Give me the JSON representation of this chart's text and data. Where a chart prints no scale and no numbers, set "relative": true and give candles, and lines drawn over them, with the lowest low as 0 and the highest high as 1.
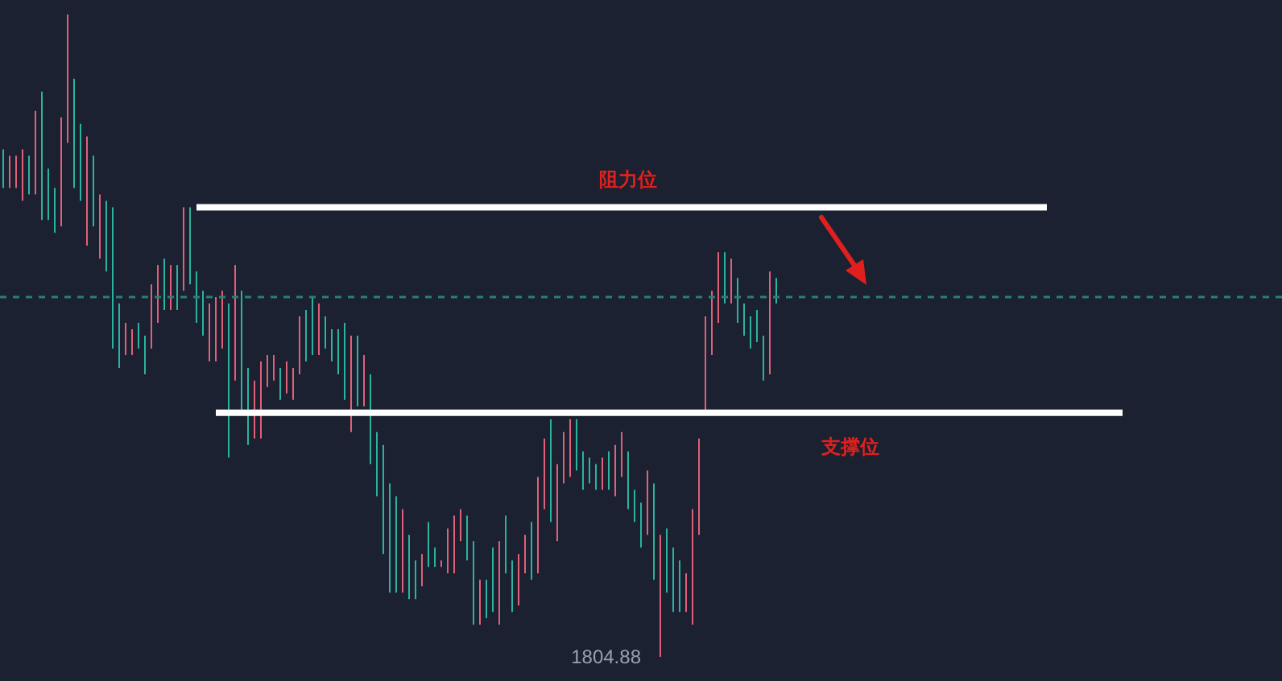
{
  "chart_data": {
    "type": "candlestick",
    "relative": true,
    "categories": [
      null,
      null,
      null,
      null,
      null,
      null,
      null,
      null,
      null,
      null,
      null,
      null,
      null,
      null,
      null,
      null,
      null,
      null,
      null,
      null,
      null,
      null,
      null,
      null,
      null,
      null,
      null,
      null,
      null,
      null,
      null,
      null,
      null,
      null,
      null,
      null,
      null,
      null,
      null,
      null,
      null,
      null,
      null,
      null,
      null,
      null,
      null,
      null,
      null,
      null,
      null,
      null,
      null,
      null,
      null,
      null,
      null,
      null,
      null,
      null,
      null,
      null,
      null,
      null,
      null,
      null,
      null,
      null,
      null,
      null,
      null,
      null,
      null,
      null,
      null,
      null,
      null,
      null,
      null,
      null,
      null,
      null,
      null,
      null,
      null,
      null,
      null,
      null,
      null,
      null,
      null,
      null,
      null,
      null,
      null,
      null,
      null,
      null,
      null,
      null,
      null,
      null,
      null,
      null,
      null,
      null,
      null,
      null,
      null,
      null,
      null,
      null,
      null,
      null,
      null,
      null,
      null,
      null,
      null,
      null,
      null
    ],
    "ohlc": [
      [
        0.79,
        0.79,
        0.73,
        0.73
      ],
      [
        0.73,
        0.78,
        0.73,
        0.78
      ],
      [
        0.73,
        0.78,
        0.73,
        0.78
      ],
      [
        0.71,
        0.79,
        0.71,
        0.79
      ],
      [
        0.78,
        0.78,
        0.72,
        0.72
      ],
      [
        0.72,
        0.85,
        0.72,
        0.85
      ],
      [
        0.88,
        0.88,
        0.68,
        0.68
      ],
      [
        0.76,
        0.76,
        0.68,
        0.68
      ],
      [
        0.73,
        0.73,
        0.66,
        0.66
      ],
      [
        0.67,
        0.84,
        0.67,
        0.84
      ],
      [
        0.8,
        1,
        0.8,
        1
      ],
      [
        0.9,
        0.9,
        0.73,
        0.73
      ],
      [
        0.83,
        0.83,
        0.71,
        0.71
      ],
      [
        0.64,
        0.81,
        0.64,
        0.81
      ],
      [
        0.78,
        0.78,
        0.67,
        0.67
      ],
      [
        0.62,
        0.72,
        0.62,
        0.72
      ],
      [
        0.71,
        0.71,
        0.6,
        0.6
      ],
      [
        0.7,
        0.7,
        0.48,
        0.48
      ],
      [
        0.55,
        0.55,
        0.45,
        0.45
      ],
      [
        0.47,
        0.52,
        0.47,
        0.52
      ],
      [
        0.47,
        0.51,
        0.47,
        0.51
      ],
      [
        0.52,
        0.52,
        0.48,
        0.48
      ],
      [
        0.5,
        0.5,
        0.44,
        0.44
      ],
      [
        0.48,
        0.58,
        0.48,
        0.58
      ],
      [
        0.52,
        0.61,
        0.52,
        0.61
      ],
      [
        0.62,
        0.62,
        0.54,
        0.54
      ],
      [
        0.54,
        0.61,
        0.54,
        0.61
      ],
      [
        0.61,
        0.61,
        0.54,
        0.54
      ],
      [
        0.57,
        0.7,
        0.57,
        0.7
      ],
      [
        0.7,
        0.7,
        0.58,
        0.58
      ],
      [
        0.6,
        0.6,
        0.52,
        0.52
      ],
      [
        0.57,
        0.57,
        0.5,
        0.5
      ],
      [
        0.46,
        0.55,
        0.46,
        0.55
      ],
      [
        0.46,
        0.56,
        0.46,
        0.56
      ],
      [
        0.48,
        0.57,
        0.48,
        0.57
      ],
      [
        0.55,
        0.55,
        0.31,
        0.31
      ],
      [
        0.43,
        0.61,
        0.43,
        0.61
      ],
      [
        0.57,
        0.57,
        0.38,
        0.38
      ],
      [
        0.45,
        0.45,
        0.33,
        0.33
      ],
      [
        0.34,
        0.43,
        0.34,
        0.43
      ],
      [
        0.34,
        0.46,
        0.34,
        0.46
      ],
      [
        0.42,
        0.47,
        0.42,
        0.47
      ],
      [
        0.43,
        0.47,
        0.43,
        0.47
      ],
      [
        0.45,
        0.45,
        0.4,
        0.4
      ],
      [
        0.41,
        0.46,
        0.41,
        0.46
      ],
      [
        0.4,
        0.45,
        0.4,
        0.45
      ],
      [
        0.44,
        0.53,
        0.44,
        0.53
      ],
      [
        0.54,
        0.54,
        0.46,
        0.46
      ],
      [
        0.56,
        0.56,
        0.47,
        0.47
      ],
      [
        0.47,
        0.55,
        0.47,
        0.55
      ],
      [
        0.53,
        0.53,
        0.48,
        0.48
      ],
      [
        0.51,
        0.51,
        0.46,
        0.46
      ],
      [
        0.51,
        0.51,
        0.44,
        0.44
      ],
      [
        0.52,
        0.52,
        0.4,
        0.4
      ],
      [
        0.35,
        0.5,
        0.35,
        0.5
      ],
      [
        0.5,
        0.5,
        0.39,
        0.39
      ],
      [
        0.39,
        0.47,
        0.39,
        0.47
      ],
      [
        0.44,
        0.44,
        0.3,
        0.3
      ],
      [
        0.35,
        0.35,
        0.25,
        0.25
      ],
      [
        0.33,
        0.33,
        0.16,
        0.16
      ],
      [
        0.27,
        0.27,
        0.1,
        0.1
      ],
      [
        0.25,
        0.25,
        0.1,
        0.1
      ],
      [
        0.1,
        0.23,
        0.1,
        0.23
      ],
      [
        0.19,
        0.19,
        0.09,
        0.09
      ],
      [
        0.15,
        0.15,
        0.09,
        0.09
      ],
      [
        0.11,
        0.16,
        0.11,
        0.16
      ],
      [
        0.21,
        0.21,
        0.14,
        0.14
      ],
      [
        0.17,
        0.17,
        0.14,
        0.14
      ],
      [
        0.14,
        0.15,
        0.14,
        0.15
      ],
      [
        0.13,
        0.2,
        0.13,
        0.2
      ],
      [
        0.13,
        0.22,
        0.13,
        0.22
      ],
      [
        0.18,
        0.23,
        0.18,
        0.23
      ],
      [
        0.22,
        0.22,
        0.15,
        0.15
      ],
      [
        0.18,
        0.18,
        0.05,
        0.05
      ],
      [
        0.05,
        0.12,
        0.05,
        0.12
      ],
      [
        0.12,
        0.12,
        0.06,
        0.06
      ],
      [
        0.17,
        0.17,
        0.07,
        0.07
      ],
      [
        0.05,
        0.18,
        0.05,
        0.18
      ],
      [
        0.22,
        0.22,
        0.13,
        0.13
      ],
      [
        0.15,
        0.15,
        0.07,
        0.07
      ],
      [
        0.08,
        0.16,
        0.08,
        0.16
      ],
      [
        0.13,
        0.19,
        0.13,
        0.19
      ],
      [
        0.21,
        0.21,
        0.12,
        0.12
      ],
      [
        0.13,
        0.28,
        0.13,
        0.28
      ],
      [
        0.23,
        0.34,
        0.23,
        0.34
      ],
      [
        0.37,
        0.37,
        0.21,
        0.21
      ],
      [
        0.18,
        0.3,
        0.18,
        0.3
      ],
      [
        0.27,
        0.35,
        0.27,
        0.35
      ],
      [
        0.28,
        0.37,
        0.28,
        0.37
      ],
      [
        0.37,
        0.37,
        0.29,
        0.29
      ],
      [
        0.32,
        0.32,
        0.26,
        0.26
      ],
      [
        0.31,
        0.31,
        0.27,
        0.27
      ],
      [
        0.3,
        0.3,
        0.26,
        0.26
      ],
      [
        0.26,
        0.31,
        0.26,
        0.31
      ],
      [
        0.32,
        0.32,
        0.26,
        0.26
      ],
      [
        0.25,
        0.33,
        0.25,
        0.33
      ],
      [
        0.28,
        0.35,
        0.28,
        0.35
      ],
      [
        0.32,
        0.32,
        0.23,
        0.23
      ],
      [
        0.26,
        0.26,
        0.21,
        0.21
      ],
      [
        0.24,
        0.24,
        0.17,
        0.17
      ],
      [
        0.19,
        0.29,
        0.19,
        0.29
      ],
      [
        0.27,
        0.27,
        0.12,
        0.12
      ],
      [
        0,
        0.19,
        0,
        0.19
      ],
      [
        0.2,
        0.2,
        0.1,
        0.1
      ],
      [
        0.17,
        0.17,
        0.07,
        0.07
      ],
      [
        0.15,
        0.15,
        0.07,
        0.07
      ],
      [
        0.07,
        0.13,
        0.07,
        0.13
      ],
      [
        0.05,
        0.23,
        0.05,
        0.23
      ],
      [
        0.19,
        0.34,
        0.19,
        0.34
      ],
      [
        0.38,
        0.53,
        0.38,
        0.53
      ],
      [
        0.47,
        0.57,
        0.47,
        0.57
      ],
      [
        0.52,
        0.63,
        0.52,
        0.63
      ],
      [
        0.63,
        0.63,
        0.55,
        0.55
      ],
      [
        0.55,
        0.62,
        0.55,
        0.62
      ],
      [
        0.59,
        0.59,
        0.52,
        0.52
      ],
      [
        0.55,
        0.55,
        0.5,
        0.5
      ],
      [
        0.53,
        0.53,
        0.48,
        0.48
      ],
      [
        0.54,
        0.54,
        0.49,
        0.49
      ],
      [
        0.5,
        0.5,
        0.43,
        0.43
      ],
      [
        0.44,
        0.6,
        0.44,
        0.6
      ],
      [
        0.59,
        0.59,
        0.55,
        0.55
      ]
    ],
    "colors": [
      "#2bb3a0",
      "#e0607a",
      "#e0607a",
      "#e0607a",
      "#2bb3a0",
      "#e0607a",
      "#2bb3a0",
      "#2bb3a0",
      "#2bb3a0",
      "#e0607a",
      "#e0607a",
      "#2bb3a0",
      "#2bb3a0",
      "#e0607a",
      "#2bb3a0",
      "#e0607a",
      "#2bb3a0",
      "#2bb3a0",
      "#2bb3a0",
      "#e0607a",
      "#e0607a",
      "#2bb3a0",
      "#2bb3a0",
      "#e0607a",
      "#e0607a",
      "#2bb3a0",
      "#e0607a",
      "#2bb3a0",
      "#e0607a",
      "#2bb3a0",
      "#2bb3a0",
      "#2bb3a0",
      "#e0607a",
      "#e0607a",
      "#e0607a",
      "#2bb3a0",
      "#e0607a",
      "#2bb3a0",
      "#2bb3a0",
      "#e0607a",
      "#e0607a",
      "#e0607a",
      "#e0607a",
      "#2bb3a0",
      "#e0607a",
      "#e0607a",
      "#e0607a",
      "#2bb3a0",
      "#2bb3a0",
      "#e0607a",
      "#2bb3a0",
      "#2bb3a0",
      "#2bb3a0",
      "#2bb3a0",
      "#e0607a",
      "#2bb3a0",
      "#e0607a",
      "#2bb3a0",
      "#2bb3a0",
      "#2bb3a0",
      "#2bb3a0",
      "#2bb3a0",
      "#e0607a",
      "#2bb3a0",
      "#2bb3a0",
      "#e0607a",
      "#2bb3a0",
      "#2bb3a0",
      "#e0607a",
      "#e0607a",
      "#e0607a",
      "#e0607a",
      "#2bb3a0",
      "#2bb3a0",
      "#e0607a",
      "#2bb3a0",
      "#2bb3a0",
      "#e0607a",
      "#2bb3a0",
      "#2bb3a0",
      "#e0607a",
      "#e0607a",
      "#2bb3a0",
      "#e0607a",
      "#e0607a",
      "#2bb3a0",
      "#e0607a",
      "#e0607a",
      "#e0607a",
      "#2bb3a0",
      "#2bb3a0",
      "#2bb3a0",
      "#2bb3a0",
      "#e0607a",
      "#2bb3a0",
      "#e0607a",
      "#e0607a",
      "#2bb3a0",
      "#2bb3a0",
      "#2bb3a0",
      "#e0607a",
      "#2bb3a0",
      "#e0607a",
      "#2bb3a0",
      "#2bb3a0",
      "#2bb3a0",
      "#e0607a",
      "#e0607a",
      "#e0607a",
      "#e0607a",
      "#e0607a",
      "#e0607a",
      "#2bb3a0",
      "#e0607a",
      "#2bb3a0",
      "#2bb3a0",
      "#2bb3a0",
      "#2bb3a0",
      "#2bb3a0",
      "#e0607a",
      "#2bb3a0"
    ],
    "ref_lines": [
      {
        "axis": "y",
        "value": 0.7,
        "label": "阻力位",
        "color": "#ffffff"
      },
      {
        "axis": "y",
        "value": 0.38,
        "label": "支撑位",
        "color": "#ffffff"
      },
      {
        "axis": "y",
        "value": 0.56,
        "color": "#2a7f7a",
        "line_style": "dashed"
      }
    ],
    "annotations": [
      "1804.88"
    ]
  }
}
